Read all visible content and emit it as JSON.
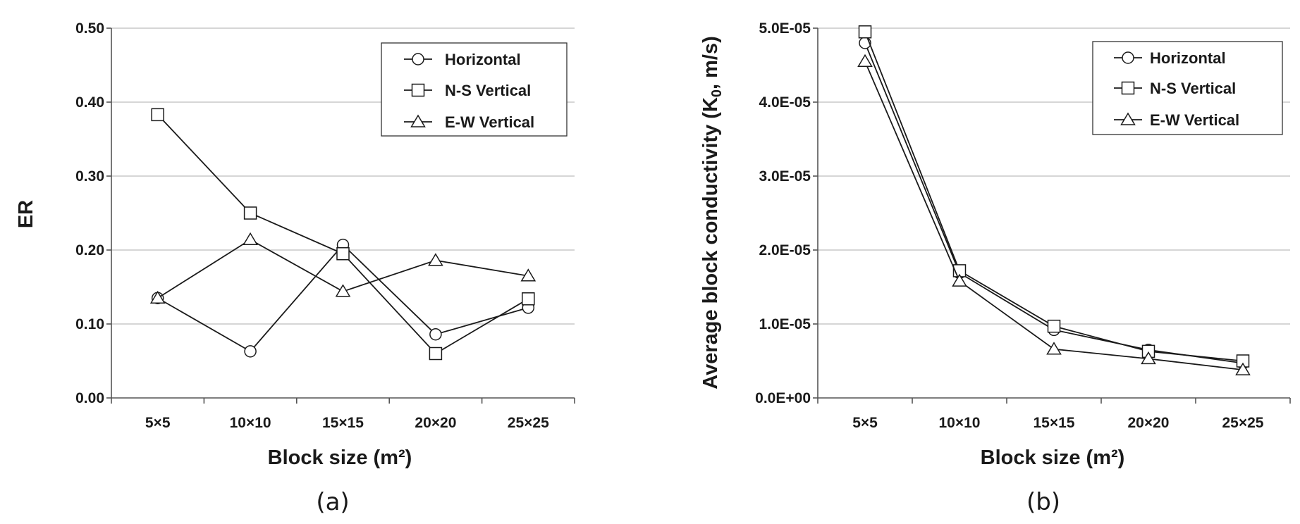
{
  "chart_data": [
    {
      "type": "line",
      "panel_label": "(a)",
      "title": "",
      "xlabel": "Block size (m²)",
      "ylabel": "ER",
      "categories": [
        "5×5",
        "10×10",
        "15×15",
        "20×20",
        "25×25"
      ],
      "ylim": [
        0,
        0.5
      ],
      "yticks": [
        0,
        0.1,
        0.2,
        0.3,
        0.4,
        0.5
      ],
      "ytick_labels": [
        "0.00",
        "0.10",
        "0.20",
        "0.30",
        "0.40",
        "0.50"
      ],
      "grid": true,
      "legend_position": "top-right",
      "series": [
        {
          "name": "Horizontal",
          "marker": "circle",
          "values": [
            0.135,
            0.063,
            0.207,
            0.086,
            0.122
          ]
        },
        {
          "name": "N-S Vertical",
          "marker": "square",
          "values": [
            0.383,
            0.25,
            0.195,
            0.06,
            0.134
          ]
        },
        {
          "name": "E-W Vertical",
          "marker": "triangle",
          "values": [
            0.135,
            0.214,
            0.144,
            0.186,
            0.165
          ]
        }
      ]
    },
    {
      "type": "line",
      "panel_label": "(b)",
      "title": "",
      "xlabel": "Block size (m²)",
      "ylabel_main": "Average block conductivity (K",
      "ylabel_sub": "0",
      "ylabel_tail": ", m/s)",
      "categories": [
        "5×5",
        "10×10",
        "15×15",
        "20×20",
        "25×25"
      ],
      "ylim": [
        0,
        5e-05
      ],
      "yticks": [
        0,
        1e-05,
        2e-05,
        3e-05,
        4e-05,
        5e-05
      ],
      "ytick_labels": [
        "0.0E+00",
        "1.0E-05",
        "2.0E-05",
        "3.0E-05",
        "4.0E-05",
        "5.0E-05"
      ],
      "grid": true,
      "legend_position": "top-right",
      "series": [
        {
          "name": "Horizontal",
          "marker": "circle",
          "values": [
            4.8e-05,
            1.69e-05,
            9.2e-06,
            6.5e-06,
            4.7e-06
          ]
        },
        {
          "name": "N-S Vertical",
          "marker": "square",
          "values": [
            4.95e-05,
            1.72e-05,
            9.7e-06,
            6.3e-06,
            5e-06
          ]
        },
        {
          "name": "E-W Vertical",
          "marker": "triangle",
          "values": [
            4.55e-05,
            1.58e-05,
            6.6e-06,
            5.3e-06,
            3.8e-06
          ]
        }
      ]
    }
  ]
}
